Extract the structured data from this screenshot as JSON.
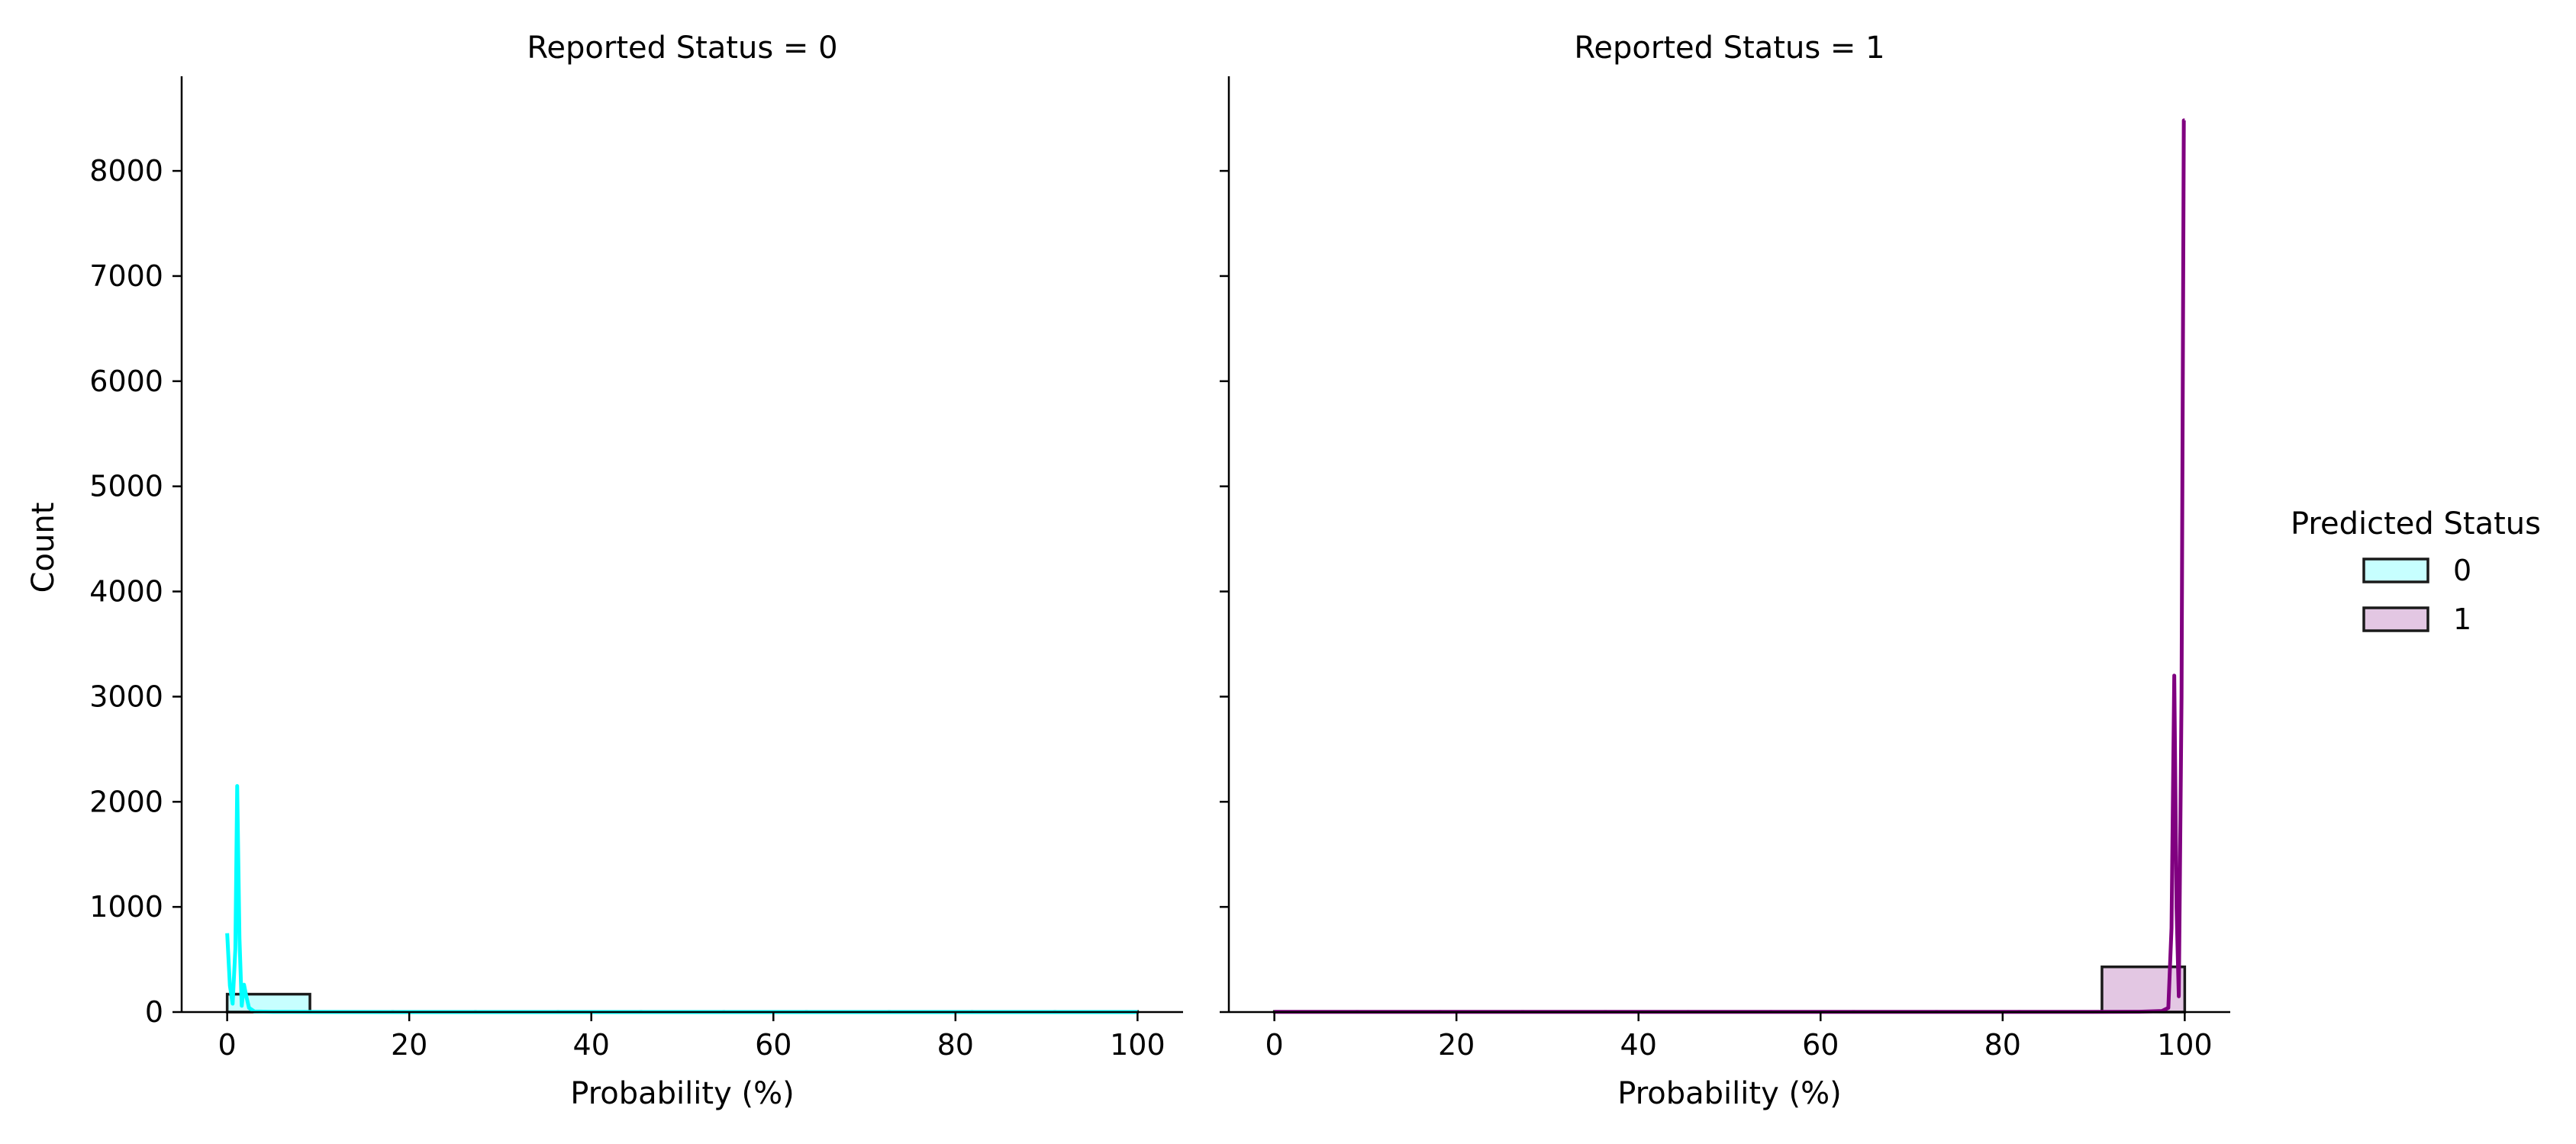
{
  "chart_data": {
    "type": "histogram",
    "legend": {
      "title": "Predicted Status",
      "placement": "right",
      "entries": [
        {
          "label": "0",
          "color": "#00FFFF"
        },
        {
          "label": "1",
          "color": "#800080"
        }
      ]
    },
    "ylabel": "Count",
    "ylim": [
      0,
      8900
    ],
    "yticks": [
      0,
      1000,
      2000,
      3000,
      4000,
      5000,
      6000,
      7000,
      8000
    ],
    "xlim": [
      -5,
      105
    ],
    "xticks": [
      0,
      20,
      40,
      60,
      80,
      100
    ],
    "panels": [
      {
        "title": "Reported Status = 0",
        "xlabel": "Probability (%)",
        "show_y_tick_labels": true,
        "series": [
          {
            "name": "0",
            "color": "#00FFFF",
            "bins": [
              {
                "x0": 0,
                "x1": 9.09,
                "count": 170
              },
              {
                "x0": 9.09,
                "x1": 18.18,
                "count": 2
              },
              {
                "x0": 18.18,
                "x1": 27.27,
                "count": 1
              },
              {
                "x0": 27.27,
                "x1": 36.36,
                "count": 1
              },
              {
                "x0": 36.36,
                "x1": 45.45,
                "count": 1
              },
              {
                "x0": 45.45,
                "x1": 54.55,
                "count": 1
              },
              {
                "x0": 54.55,
                "x1": 63.64,
                "count": 1
              },
              {
                "x0": 63.64,
                "x1": 72.73,
                "count": 1
              },
              {
                "x0": 72.73,
                "x1": 81.82,
                "count": 1
              },
              {
                "x0": 81.82,
                "x1": 90.91,
                "count": 1
              },
              {
                "x0": 90.91,
                "x1": 100,
                "count": 1
              }
            ],
            "curve": [
              [
                0,
                750
              ],
              [
                0.3,
                250
              ],
              [
                0.6,
                80
              ],
              [
                0.9,
                600
              ],
              [
                1.1,
                2150
              ],
              [
                1.35,
                700
              ],
              [
                1.6,
                60
              ],
              [
                1.85,
                260
              ],
              [
                2.1,
                150
              ],
              [
                2.4,
                40
              ],
              [
                3,
                5
              ],
              [
                5,
                2
              ],
              [
                10,
                1
              ],
              [
                20,
                0
              ],
              [
                40,
                0
              ],
              [
                60,
                0
              ],
              [
                80,
                0
              ],
              [
                100,
                0
              ]
            ]
          }
        ]
      },
      {
        "title": "Reported Status = 1",
        "xlabel": "Probability (%)",
        "show_y_tick_labels": false,
        "series": [
          {
            "name": "1",
            "color": "#800080",
            "bins": [
              {
                "x0": 0,
                "x1": 9.09,
                "count": 2
              },
              {
                "x0": 9.09,
                "x1": 18.18,
                "count": 2
              },
              {
                "x0": 18.18,
                "x1": 27.27,
                "count": 2
              },
              {
                "x0": 27.27,
                "x1": 36.36,
                "count": 2
              },
              {
                "x0": 36.36,
                "x1": 45.45,
                "count": 2
              },
              {
                "x0": 45.45,
                "x1": 54.55,
                "count": 2
              },
              {
                "x0": 54.55,
                "x1": 63.64,
                "count": 2
              },
              {
                "x0": 63.64,
                "x1": 72.73,
                "count": 2
              },
              {
                "x0": 72.73,
                "x1": 81.82,
                "count": 2
              },
              {
                "x0": 81.82,
                "x1": 90.91,
                "count": 2
              },
              {
                "x0": 90.91,
                "x1": 100,
                "count": 430
              }
            ],
            "curve": [
              [
                0,
                2
              ],
              [
                20,
                2
              ],
              [
                40,
                2
              ],
              [
                60,
                2
              ],
              [
                80,
                2
              ],
              [
                90,
                2
              ],
              [
                95,
                3
              ],
              [
                97.5,
                10
              ],
              [
                98.2,
                40
              ],
              [
                98.55,
                800
              ],
              [
                98.85,
                3200
              ],
              [
                99.1,
                1000
              ],
              [
                99.35,
                150
              ],
              [
                99.65,
                3000
              ],
              [
                99.9,
                8480
              ],
              [
                100,
                8480
              ]
            ]
          }
        ]
      }
    ]
  }
}
